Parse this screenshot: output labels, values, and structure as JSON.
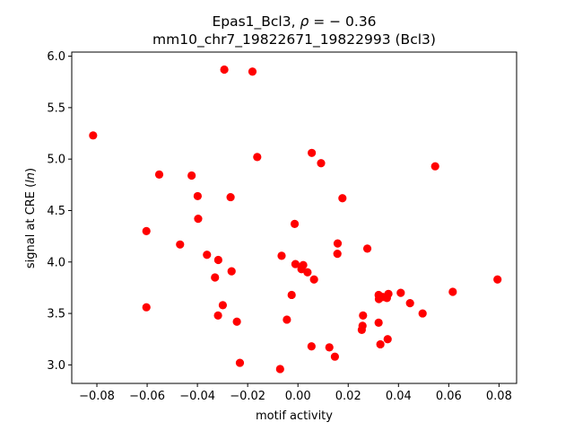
{
  "chart_data": {
    "type": "scatter",
    "title_line1_prefix": "Epas1_Bcl3, ",
    "title_rho_symbol": "ρ",
    "title_rho_value": " = − 0.36",
    "title_line2": "mm10_chr7_19822671_19822993 (Bcl3)",
    "xlabel": "motif activity",
    "ylabel_prefix": "signal at CRE (",
    "ylabel_italic": "ln",
    "ylabel_suffix": ")",
    "xlim": [
      -0.09,
      0.087
    ],
    "ylim": [
      2.82,
      6.04
    ],
    "xticks": [
      -0.08,
      -0.06,
      -0.04,
      -0.02,
      0.0,
      0.02,
      0.04,
      0.06,
      0.08
    ],
    "xtick_labels": [
      "−0.08",
      "−0.06",
      "−0.04",
      "−0.02",
      "0.00",
      "0.02",
      "0.04",
      "0.06",
      "0.08"
    ],
    "yticks": [
      3.0,
      3.5,
      4.0,
      4.5,
      5.0,
      5.5,
      6.0
    ],
    "ytick_labels": [
      "3.0",
      "3.5",
      "4.0",
      "4.5",
      "5.0",
      "5.5",
      "6.0"
    ],
    "grid": false,
    "marker_color": "#ff0000",
    "points": [
      {
        "x": -0.0815,
        "y": 5.23
      },
      {
        "x": -0.0293,
        "y": 5.87
      },
      {
        "x": -0.0181,
        "y": 5.85
      },
      {
        "x": -0.0552,
        "y": 4.85
      },
      {
        "x": -0.0423,
        "y": 4.84
      },
      {
        "x": -0.0399,
        "y": 4.64
      },
      {
        "x": -0.0268,
        "y": 4.63
      },
      {
        "x": -0.0397,
        "y": 4.42
      },
      {
        "x": -0.0162,
        "y": 5.02
      },
      {
        "x": -0.0603,
        "y": 4.3
      },
      {
        "x": -0.0469,
        "y": 4.17
      },
      {
        "x": -0.0362,
        "y": 4.07
      },
      {
        "x": -0.0317,
        "y": 4.02
      },
      {
        "x": -0.0264,
        "y": 3.91
      },
      {
        "x": -0.033,
        "y": 3.85
      },
      {
        "x": -0.0299,
        "y": 3.58
      },
      {
        "x": -0.0603,
        "y": 3.56
      },
      {
        "x": -0.0318,
        "y": 3.48
      },
      {
        "x": -0.0243,
        "y": 3.42
      },
      {
        "x": -0.0231,
        "y": 3.02
      },
      {
        "x": 0.0055,
        "y": 5.06
      },
      {
        "x": 0.0092,
        "y": 4.96
      },
      {
        "x": 0.0546,
        "y": 4.93
      },
      {
        "x": 0.0177,
        "y": 4.62
      },
      {
        "x": -0.0013,
        "y": 4.37
      },
      {
        "x": 0.0158,
        "y": 4.18
      },
      {
        "x": 0.0276,
        "y": 4.13
      },
      {
        "x": 0.0157,
        "y": 4.08
      },
      {
        "x": -0.0065,
        "y": 4.06
      },
      {
        "x": -0.001,
        "y": 3.98
      },
      {
        "x": 0.0021,
        "y": 3.97
      },
      {
        "x": 0.0014,
        "y": 3.93
      },
      {
        "x": 0.0038,
        "y": 3.9
      },
      {
        "x": 0.0064,
        "y": 3.83
      },
      {
        "x": 0.0794,
        "y": 3.83
      },
      {
        "x": 0.0616,
        "y": 3.71
      },
      {
        "x": 0.0409,
        "y": 3.7
      },
      {
        "x": 0.036,
        "y": 3.69
      },
      {
        "x": 0.0321,
        "y": 3.68
      },
      {
        "x": 0.0338,
        "y": 3.66
      },
      {
        "x": 0.0354,
        "y": 3.65
      },
      {
        "x": 0.0322,
        "y": 3.64
      },
      {
        "x": -0.0025,
        "y": 3.68
      },
      {
        "x": 0.0446,
        "y": 3.6
      },
      {
        "x": 0.0496,
        "y": 3.5
      },
      {
        "x": 0.0259,
        "y": 3.48
      },
      {
        "x": -0.0044,
        "y": 3.44
      },
      {
        "x": 0.0321,
        "y": 3.41
      },
      {
        "x": 0.0257,
        "y": 3.38
      },
      {
        "x": 0.0254,
        "y": 3.34
      },
      {
        "x": 0.0357,
        "y": 3.25
      },
      {
        "x": 0.0328,
        "y": 3.2
      },
      {
        "x": 0.0054,
        "y": 3.18
      },
      {
        "x": 0.0125,
        "y": 3.17
      },
      {
        "x": 0.0147,
        "y": 3.08
      },
      {
        "x": -0.0071,
        "y": 2.96
      }
    ]
  }
}
